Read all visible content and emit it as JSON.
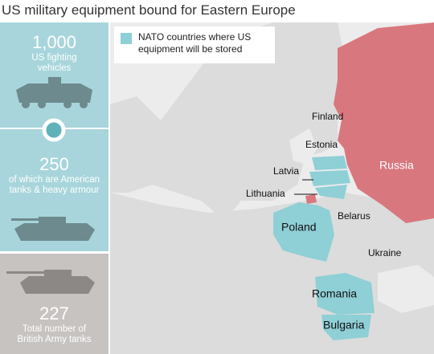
{
  "title": "US military equipment bound for Eastern Europe",
  "legend": {
    "label": "NATO countries where US equipment will be stored"
  },
  "panels": [
    {
      "number": "1,000",
      "caption": "US fighting vehicles"
    },
    {
      "number": "250",
      "caption": "of which are American tanks & heavy armour"
    },
    {
      "number": "227",
      "caption": "Total number of British Army tanks"
    }
  ],
  "map": {
    "labels": [
      "Finland",
      "Estonia",
      "Latvia",
      "Lithuania",
      "Russia",
      "Poland",
      "Belarus",
      "Ukraine",
      "Romania",
      "Bulgaria"
    ]
  }
}
